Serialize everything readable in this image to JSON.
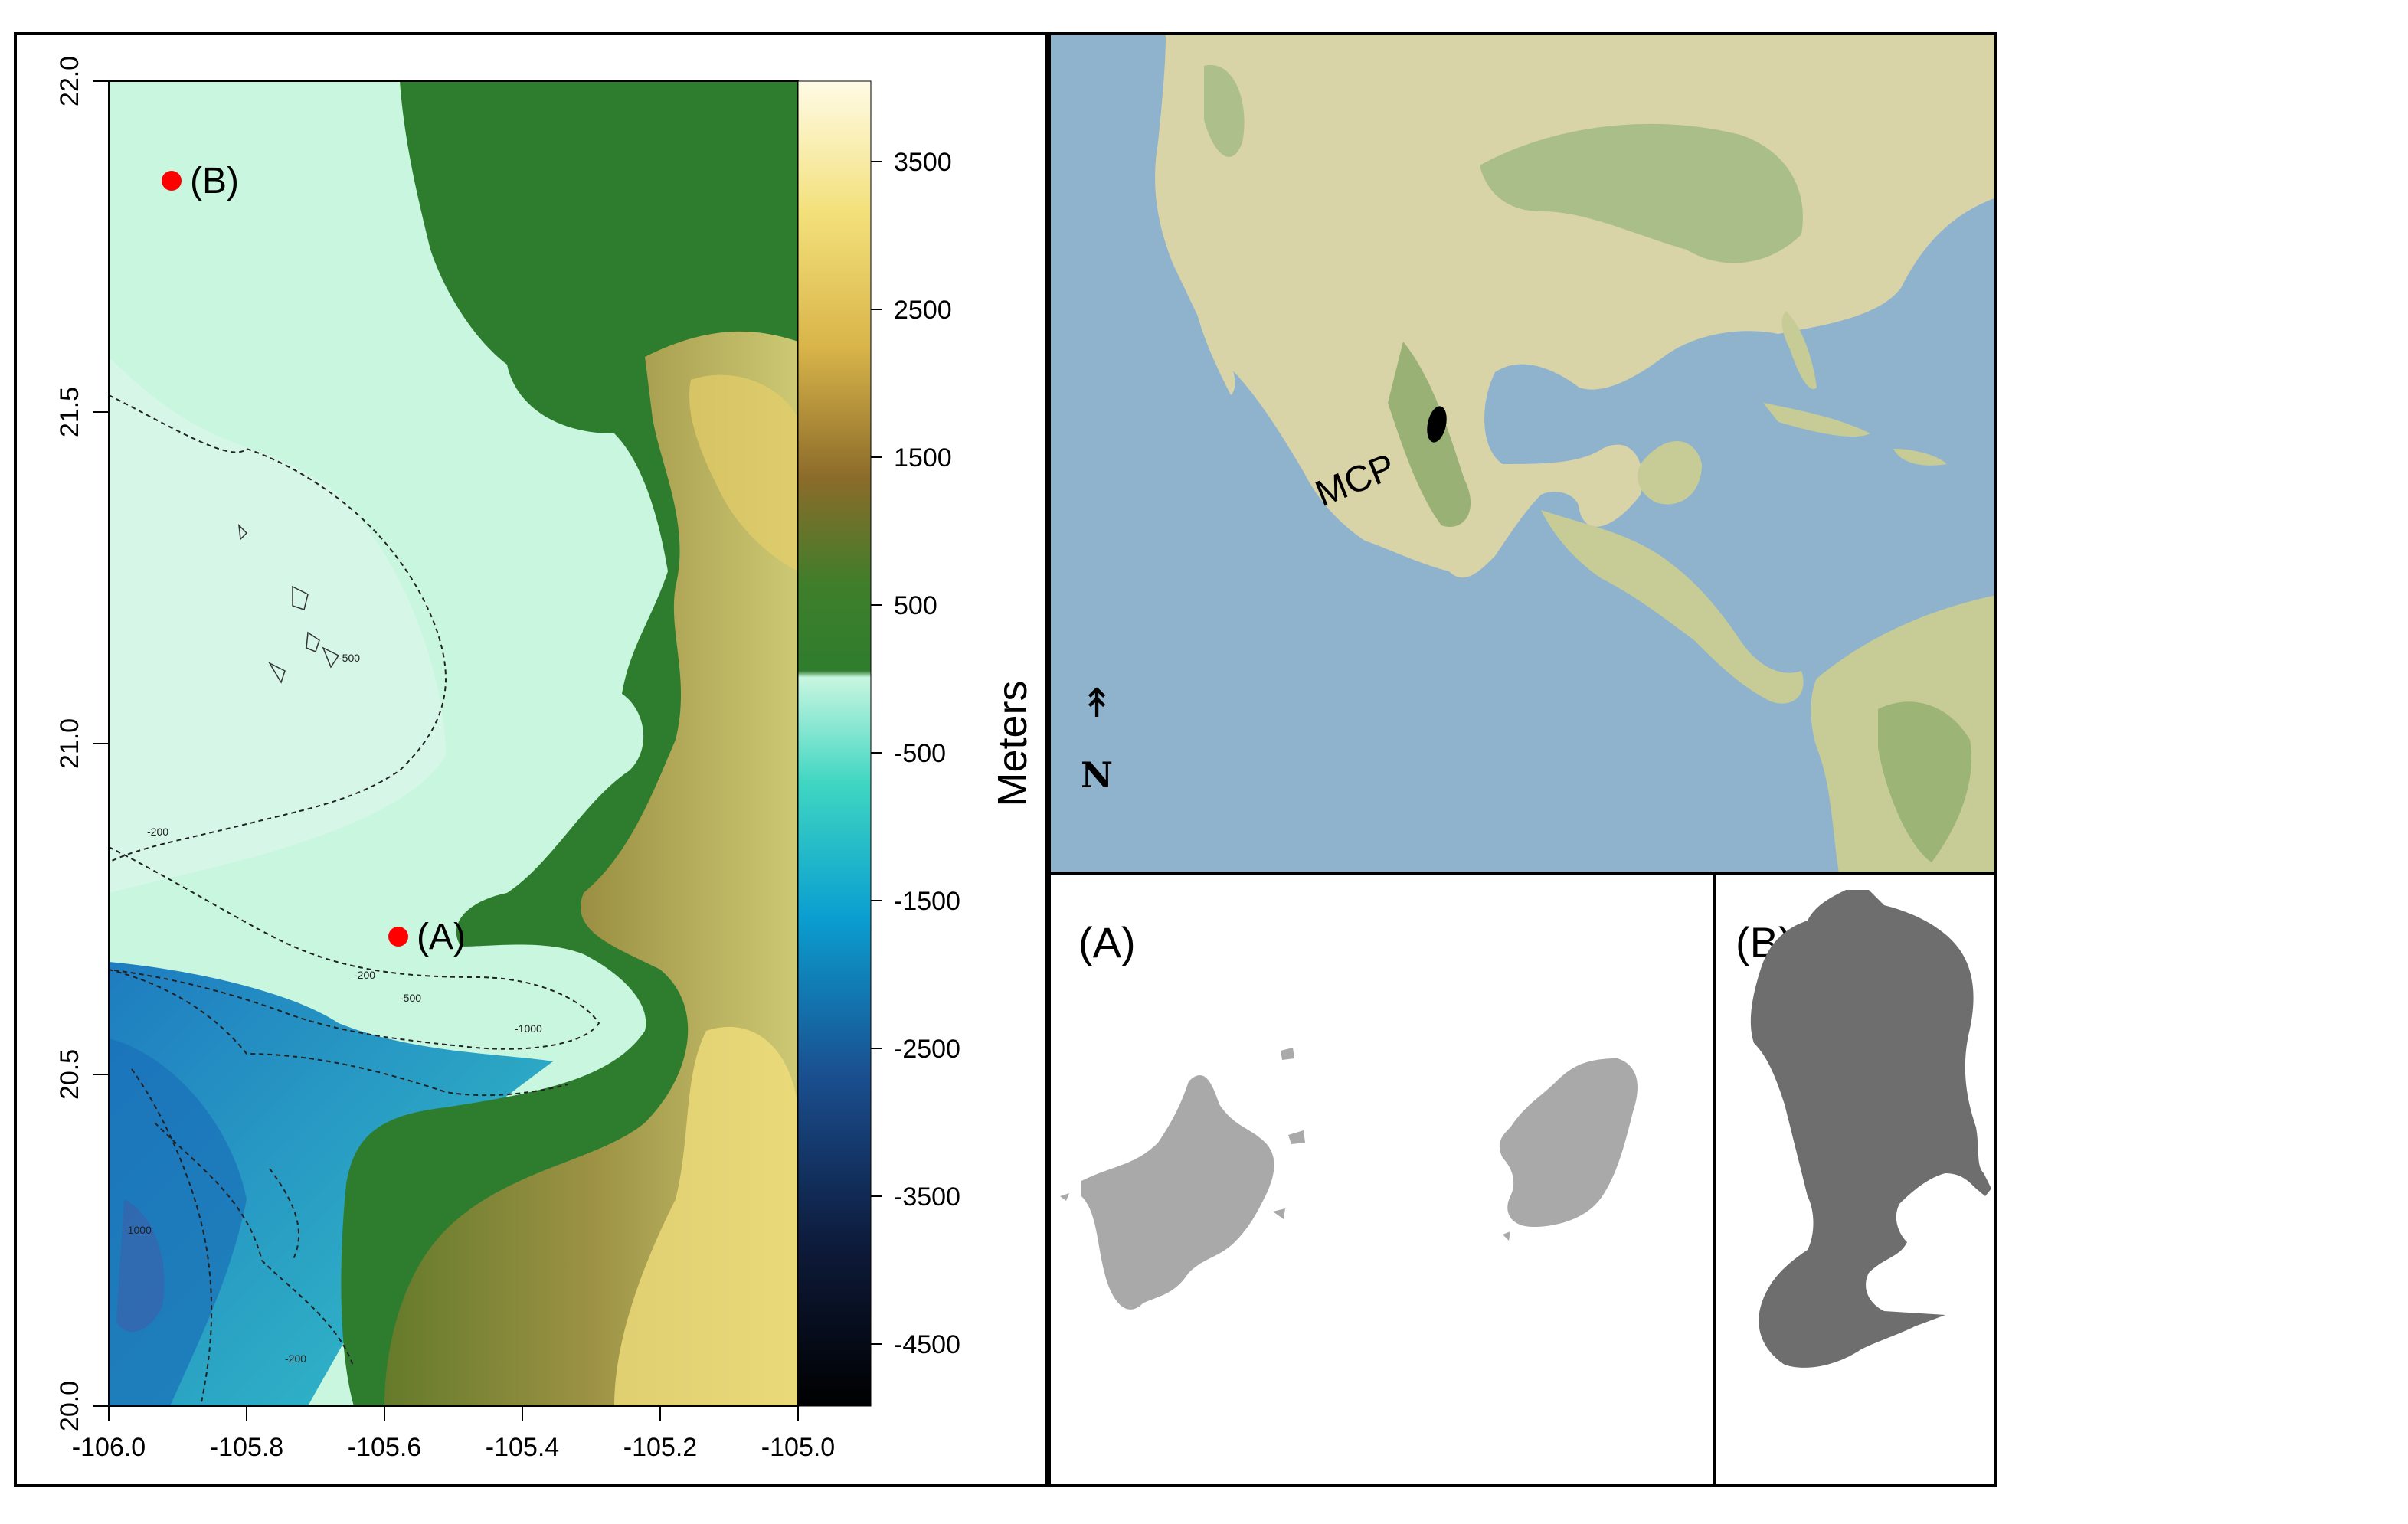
{
  "map_panel": {
    "y_ticks": [
      "20.0",
      "20.5",
      "21.0",
      "21.5",
      "22.0"
    ],
    "x_ticks": [
      "-106.0",
      "-105.8",
      "-105.6",
      "-105.4",
      "-105.2",
      "-105.0"
    ],
    "points": [
      {
        "label": "(A)",
        "lon": -105.58,
        "lat": 20.7
      },
      {
        "label": "(B)",
        "lon": -105.91,
        "lat": 21.85
      }
    ],
    "contour_labels": [
      "-200",
      "-500",
      "-1000",
      "-200",
      "-200",
      "-500",
      "-1000"
    ],
    "point_color": "#ff0000"
  },
  "legend": {
    "title": "Meters",
    "ticks": [
      "3500",
      "2500",
      "1500",
      "500",
      "-500",
      "-1500",
      "-2500",
      "-3500",
      "-4500"
    ]
  },
  "overview_map": {
    "site_label": "MCP",
    "north_arrow": "↟",
    "north_label": "N",
    "ocean_color": "#8fb3cd",
    "land_color": "#d9d3a8"
  },
  "inset_a": {
    "label": "(A)",
    "fill": "#a9a9a9"
  },
  "inset_b": {
    "label": "(B)",
    "fill": "#6e6e6e"
  }
}
